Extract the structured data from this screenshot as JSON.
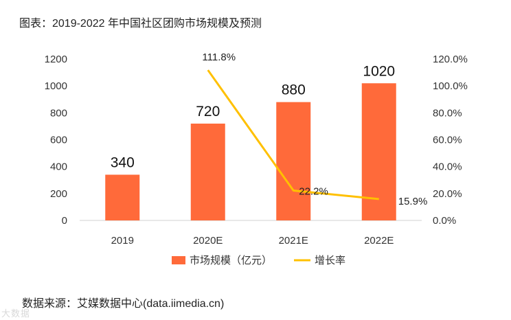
{
  "figure": {
    "title": "图表：2019-2022 年中国社区团购市场规模及预测",
    "source": "数据来源：艾媒数据中心(data.iimedia.cn)",
    "watermark": "大数据"
  },
  "chart_data": {
    "type": "bar",
    "categories": [
      "2019",
      "2020E",
      "2021E",
      "2022E"
    ],
    "series": [
      {
        "name": "市场规模（亿元）",
        "type": "bar",
        "axis": "left",
        "values": [
          340,
          720,
          880,
          1020
        ],
        "labels": [
          "340",
          "720",
          "880",
          "1020"
        ],
        "color": "#FF6A3A"
      },
      {
        "name": "增长率",
        "type": "line",
        "axis": "right",
        "values": [
          null,
          111.8,
          22.2,
          15.9
        ],
        "labels": [
          "",
          "111.8%",
          "22.2%",
          "15.9%"
        ],
        "color": "#FFC000"
      }
    ],
    "y_left": {
      "min": 0,
      "max": 1200,
      "ticks": [
        "0",
        "200",
        "400",
        "600",
        "800",
        "1000",
        "1200"
      ]
    },
    "y_right": {
      "min": 0,
      "max": 120,
      "ticks": [
        "0.0%",
        "20.0%",
        "40.0%",
        "60.0%",
        "80.0%",
        "100.0%",
        "120.0%"
      ]
    },
    "legend_position": "bottom",
    "grid": false
  }
}
